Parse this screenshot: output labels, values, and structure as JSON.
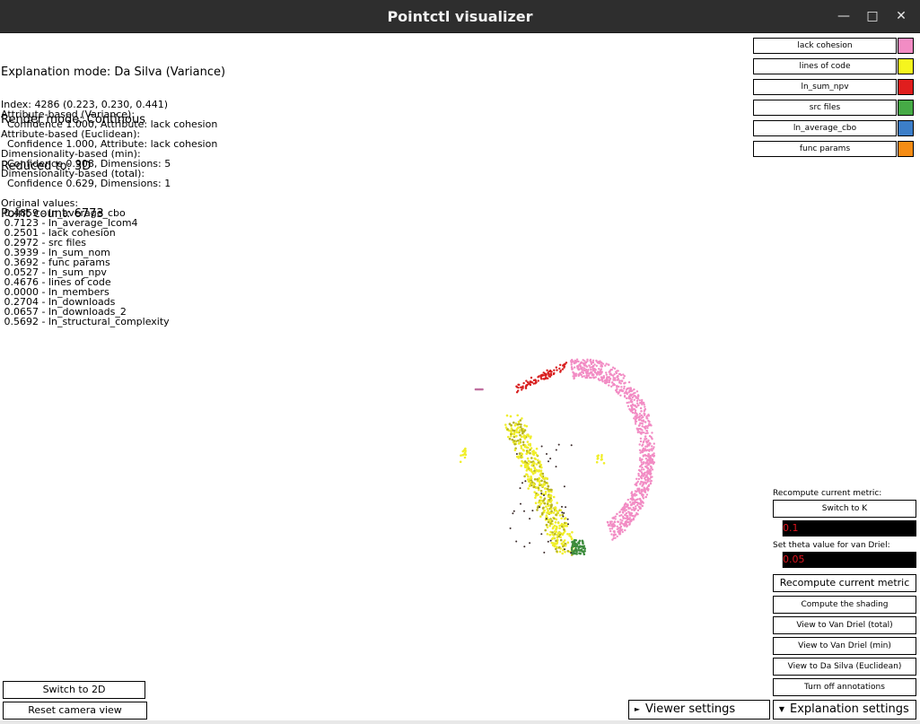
{
  "window": {
    "title": "Pointctl visualizer",
    "minimize_glyph": "—",
    "maximize_glyph": "□",
    "close_glyph": "✕"
  },
  "status": [
    "Explanation mode: Da Silva (Variance)",
    "Render mode: Continous",
    "Reduced to: 3D",
    "Point count: 6773"
  ],
  "details": [
    "Index: 4286 (0.223, 0.230, 0.441)",
    "Attribute-based (Variance):",
    "  Confidence 1.000, Attribute: lack cohesion",
    "Attribute-based (Euclidean):",
    "  Confidence 1.000, Attribute: lack cohesion",
    "Dimensionality-based (min):",
    "  Confidence 0.908, Dimensions: 5",
    "Dimensionality-based (total):",
    "  Confidence 0.629, Dimensions: 1",
    "",
    "Original values:",
    " 0.4859 - ln_average_cbo",
    " 0.7123 - ln_average_lcom4",
    " 0.2501 - lack cohesion",
    " 0.2972 - src files",
    " 0.3939 - ln_sum_nom",
    " 0.3692 - func params",
    " 0.0527 - ln_sum_npv",
    " 0.4676 - lines of code",
    " 0.0000 - ln_members",
    " 0.2704 - ln_downloads",
    " 0.0657 - ln_downloads_2",
    " 0.5692 - ln_structural_complexity"
  ],
  "legend": [
    {
      "label": "lack cohesion",
      "color": "#f28cc4"
    },
    {
      "label": "lines of code",
      "color": "#f5f51e"
    },
    {
      "label": "ln_sum_npv",
      "color": "#e01e1e"
    },
    {
      "label": "src files",
      "color": "#46aa46"
    },
    {
      "label": "ln_average_cbo",
      "color": "#3c7ec8"
    },
    {
      "label": "func params",
      "color": "#f58c14"
    }
  ],
  "controls": {
    "recompute_label": "Recompute current metric:",
    "switch_k_button": "Switch to K",
    "k_field_value": "0.1",
    "theta_label": "Set theta value for van Driel:",
    "theta_field_value": "0.05",
    "recompute_button": "Recompute current metric",
    "shading_button": "Compute the shading",
    "van_driel_total_button": "View to Van Driel (total)",
    "van_driel_min_button": "View to Van Driel (min)",
    "da_silva_euclidean_button": "View to Da Silva (Euclidean)",
    "annotations_button": "Turn off annotations"
  },
  "bottom": {
    "switch_2d_button": "Switch to 2D",
    "reset_camera_button": "Reset camera view",
    "viewer_settings": {
      "glyph": "►",
      "label": "Viewer settings"
    },
    "explanation_settings": {
      "glyph": "▼",
      "label": "Explanation settings"
    }
  }
}
